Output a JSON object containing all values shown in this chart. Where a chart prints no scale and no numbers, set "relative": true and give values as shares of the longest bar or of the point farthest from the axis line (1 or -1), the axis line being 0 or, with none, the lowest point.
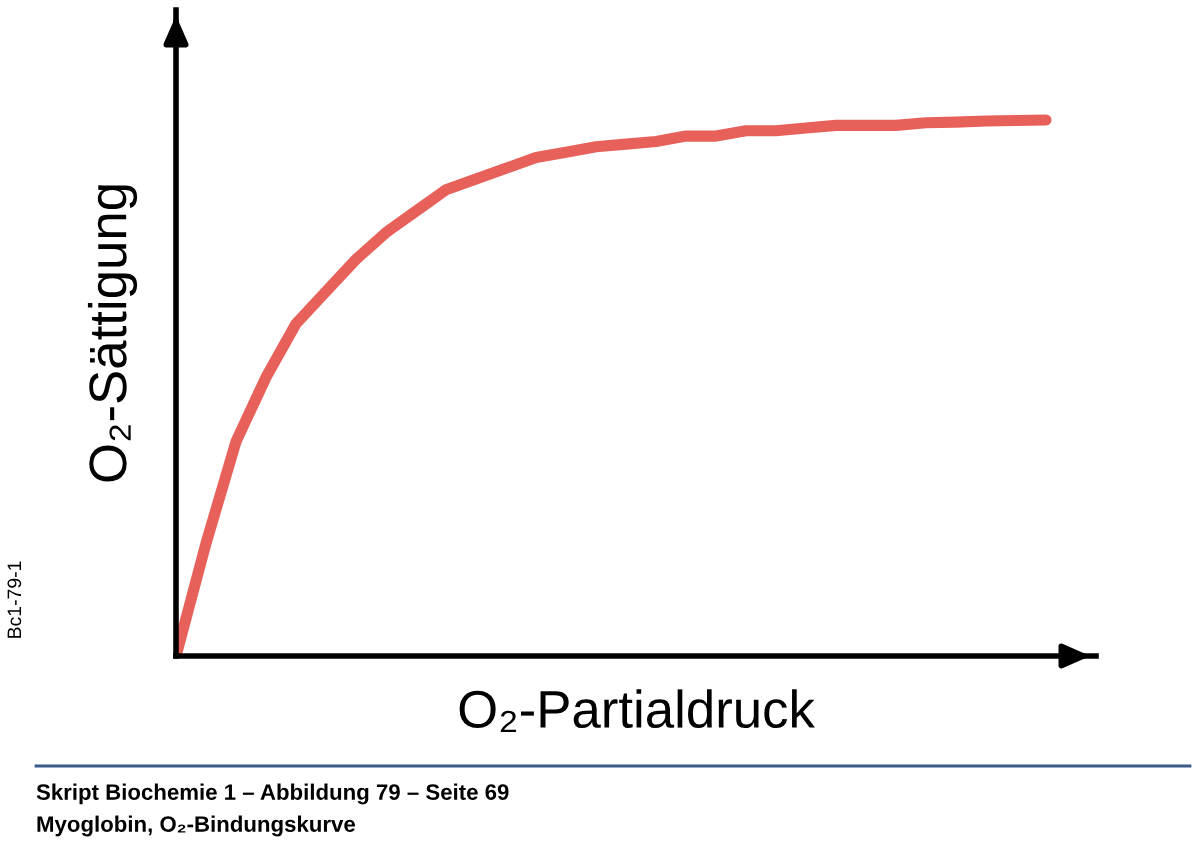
{
  "chart_data": {
    "type": "line",
    "relative": true,
    "xlabel": "O₂-Partialdruck",
    "ylabel": "O₂-Sättigung",
    "categories": [
      null,
      null,
      null,
      null,
      null,
      null,
      null,
      null,
      null,
      null,
      null,
      null,
      null,
      null,
      null,
      null,
      null,
      null,
      null,
      null,
      null,
      null,
      null,
      null,
      null,
      null,
      null,
      null,
      null,
      null
    ],
    "series": [
      {
        "color": "#e8605a",
        "values": [
          0,
          0.21,
          0.4,
          0.52,
          0.62,
          0.68,
          0.74,
          0.79,
          0.83,
          0.87,
          0.89,
          0.91,
          0.93,
          0.94,
          0.95,
          0.955,
          0.96,
          0.97,
          0.97,
          0.98,
          0.98,
          0.985,
          0.99,
          0.99,
          0.99,
          0.995,
          0.996,
          0.998,
          0.999,
          1
        ]
      }
    ],
    "grid": false,
    "legend": false,
    "tick_labels": false,
    "marker": "none",
    "line_style": "solid",
    "annotations": [
      "Bc1-79-1",
      "Skript Biochemie 1 – Abbildung 79 – Seite 69",
      "Myoglobin, O₂-Bindungskurve"
    ]
  }
}
